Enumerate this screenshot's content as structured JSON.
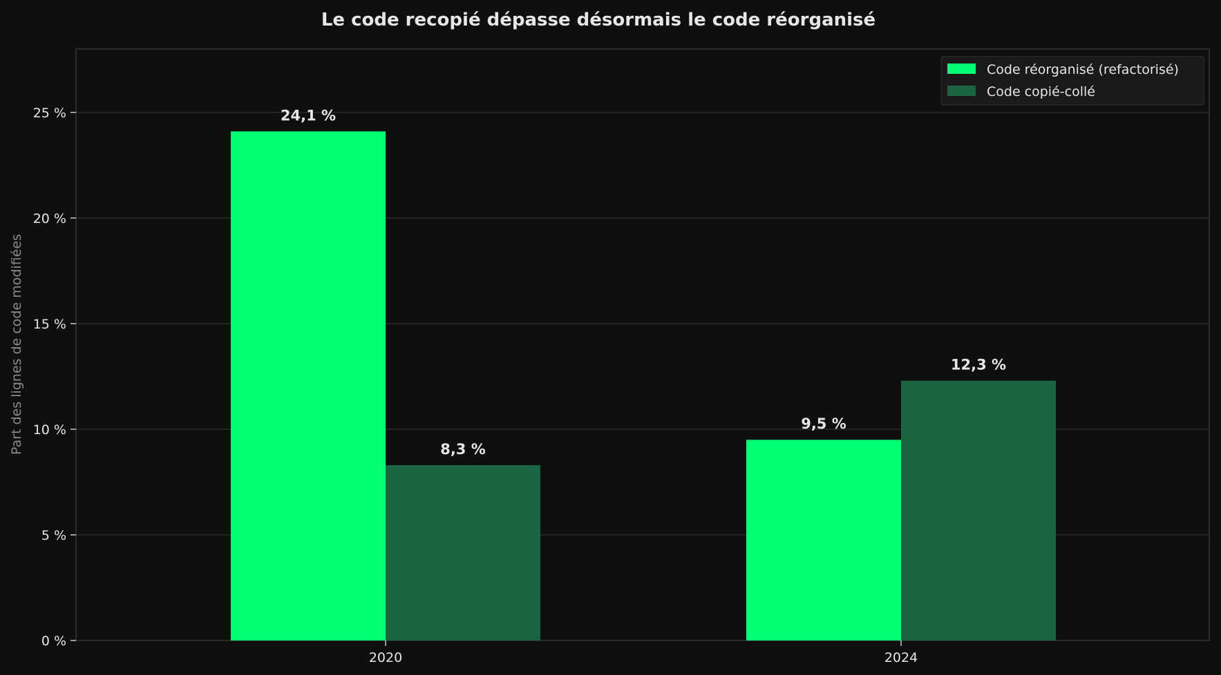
{
  "chart_data": {
    "type": "bar",
    "title": "Le code recopié dépasse désormais le code réorganisé",
    "xlabel": "",
    "ylabel": "Part des lignes de code modifiées",
    "categories": [
      "2020",
      "2024"
    ],
    "series": [
      {
        "name": "Code réorganisé (refactorisé)",
        "color": "#00ff73",
        "values": [
          24.1,
          9.5
        ],
        "labels": [
          "24,1 %",
          "9,5 %"
        ]
      },
      {
        "name": "Code copié-collé",
        "color": "#1a6640",
        "values": [
          8.3,
          12.3
        ],
        "labels": [
          "8,3 %",
          "12,3 %"
        ]
      }
    ],
    "ylim": [
      0,
      28
    ],
    "yticks": [
      0,
      5,
      10,
      15,
      20,
      25
    ],
    "ytick_labels": [
      "0 %",
      "5 %",
      "10 %",
      "15 %",
      "20 %",
      "25 %"
    ],
    "grid": true,
    "legend_position": "top-right",
    "colors": {
      "background": "#0f0f0f",
      "grid": "#2b2b2b",
      "axis": "#333333",
      "text": "#e6e6e6",
      "muted": "#8a8a8a"
    }
  }
}
